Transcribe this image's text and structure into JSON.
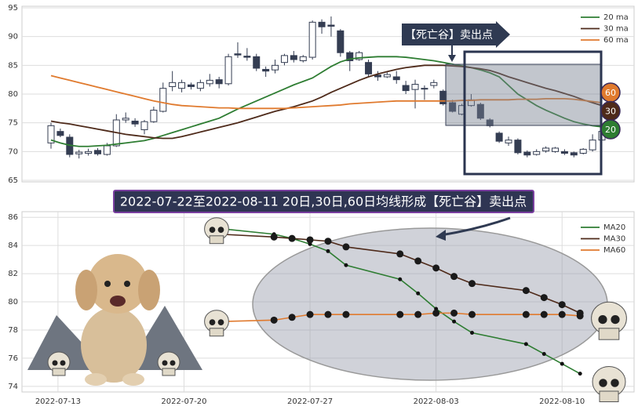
{
  "chart_data": [
    {
      "type": "candlestick",
      "ohlc": [
        [
          71.5,
          75,
          70.5,
          74.5
        ],
        [
          73.5,
          74,
          72.5,
          72.8
        ],
        [
          72.5,
          73,
          69,
          69.5
        ],
        [
          69.6,
          70.3,
          68.8,
          69.9
        ],
        [
          69.7,
          70.5,
          69.3,
          70
        ],
        [
          70.2,
          70.6,
          69.3,
          69.6
        ],
        [
          69.5,
          71.5,
          69.3,
          71
        ],
        [
          71,
          76.5,
          70.8,
          75.5
        ],
        [
          75.5,
          76.8,
          75,
          75.8
        ],
        [
          75.3,
          75.8,
          74.3,
          74.8
        ],
        [
          73.8,
          75.5,
          73,
          75.2
        ],
        [
          75.2,
          77.8,
          75,
          77.2
        ],
        [
          77,
          82,
          76.8,
          81
        ],
        [
          81.3,
          84,
          80.5,
          82
        ],
        [
          81,
          82.5,
          80.3,
          82
        ],
        [
          81.6,
          82,
          80.8,
          81.3
        ],
        [
          81,
          82.5,
          80.5,
          82
        ],
        [
          81.8,
          83.5,
          81.3,
          82.4
        ],
        [
          82.5,
          83,
          81,
          81.8
        ],
        [
          81.8,
          87,
          81.5,
          86.5
        ],
        [
          87,
          89,
          86.3,
          86.8
        ],
        [
          86.6,
          88,
          85.8,
          86.4
        ],
        [
          86.5,
          87,
          84,
          84.5
        ],
        [
          84.3,
          84.8,
          83,
          84
        ],
        [
          84.2,
          86,
          83.6,
          85
        ],
        [
          85.5,
          87,
          85,
          86.7
        ],
        [
          86.7,
          87.5,
          85.5,
          86
        ],
        [
          85.8,
          86.8,
          85.5,
          86.5
        ],
        [
          86.4,
          92.8,
          86,
          92.5
        ],
        [
          92.5,
          93,
          90.5,
          91.7
        ],
        [
          92,
          93.5,
          90,
          91.8
        ],
        [
          91,
          91.3,
          86.5,
          87.2
        ],
        [
          87.2,
          87.5,
          84,
          85.8
        ],
        [
          86,
          87.5,
          85.8,
          87.2
        ],
        [
          85.5,
          86,
          83,
          83.5
        ],
        [
          83.3,
          84,
          82.3,
          83
        ],
        [
          83,
          83.8,
          82.8,
          83.4
        ],
        [
          83,
          84,
          81.8,
          82.5
        ],
        [
          81.5,
          82.3,
          80,
          80.6
        ],
        [
          80.8,
          82.5,
          77.5,
          81.7
        ],
        [
          81,
          81.5,
          79,
          80.9
        ],
        [
          81.5,
          82.5,
          81,
          82
        ],
        [
          80.5,
          80.8,
          78,
          78.3
        ],
        [
          78.5,
          79,
          76.8,
          77
        ],
        [
          76.5,
          78.3,
          76.3,
          78
        ],
        [
          78,
          80,
          77.8,
          79
        ],
        [
          78.2,
          78.5,
          75.5,
          75.8
        ],
        [
          75.5,
          75.8,
          74.2,
          74.5
        ],
        [
          73.2,
          73.5,
          71.5,
          71.8
        ],
        [
          71.5,
          72.6,
          71,
          72
        ],
        [
          72,
          72.3,
          69.5,
          69.8
        ],
        [
          69.9,
          70.2,
          69,
          69.4
        ],
        [
          69.5,
          70.4,
          69.3,
          70
        ],
        [
          70.1,
          70.9,
          69.8,
          70.6
        ],
        [
          70,
          70.8,
          69.8,
          70.6
        ],
        [
          70,
          70.4,
          69.4,
          69.7
        ],
        [
          69.8,
          70,
          69,
          69.4
        ],
        [
          69.7,
          70.6,
          69.5,
          70.4
        ],
        [
          70.3,
          73,
          70,
          72
        ],
        [
          72,
          74,
          71.5,
          73.5
        ]
      ],
      "up_color": "#ffffff",
      "down_color": "#343d52",
      "series": [
        {
          "name": "20 ma",
          "color": "#2e7d32",
          "values": [
            72.0,
            71.5,
            71.1,
            70.9,
            70.9,
            71.0,
            71.1,
            71.3,
            71.5,
            71.7,
            71.9,
            72.3,
            72.8,
            73.3,
            73.8,
            74.3,
            74.8,
            75.3,
            75.8,
            76.6,
            77.4,
            78.1,
            78.8,
            79.5,
            80.2,
            80.9,
            81.6,
            82.2,
            82.8,
            83.8,
            84.8,
            85.6,
            86.1,
            86.3,
            86.4,
            86.5,
            86.5,
            86.5,
            86.4,
            86.2,
            86.0,
            85.8,
            85.5,
            85.2,
            84.9,
            84.6,
            84.2,
            83.7,
            83.0,
            81.5,
            80.0,
            79.0,
            78.0,
            77.2,
            76.5,
            75.8,
            75.2,
            74.8,
            74.5,
            74.3
          ]
        },
        {
          "name": "30 ma",
          "color": "#4e2a1a",
          "values": [
            75.3,
            75.0,
            74.8,
            74.5,
            74.2,
            73.9,
            73.6,
            73.3,
            73.0,
            72.8,
            72.6,
            72.4,
            72.3,
            72.3,
            72.6,
            73.0,
            73.4,
            73.8,
            74.2,
            74.6,
            75.0,
            75.5,
            76.0,
            76.5,
            77.0,
            77.4,
            77.8,
            78.3,
            78.8,
            79.5,
            80.3,
            81.0,
            81.7,
            82.4,
            83.0,
            83.5,
            83.9,
            84.3,
            84.6,
            84.8,
            85.0,
            85.0,
            85.0,
            84.9,
            84.8,
            84.6,
            84.4,
            84.1,
            83.6,
            83.0,
            82.5,
            82.0,
            81.5,
            81.0,
            80.6,
            80.1,
            79.6,
            79.0,
            78.5,
            78.0
          ]
        },
        {
          "name": "60 ma",
          "color": "#e07a2e",
          "values": [
            83.2,
            82.8,
            82.4,
            82.0,
            81.6,
            81.2,
            80.8,
            80.4,
            80.0,
            79.6,
            79.2,
            78.8,
            78.5,
            78.2,
            78.0,
            77.9,
            77.8,
            77.7,
            77.6,
            77.6,
            77.5,
            77.5,
            77.5,
            77.5,
            77.5,
            77.5,
            77.6,
            77.7,
            77.8,
            77.9,
            78.0,
            78.1,
            78.3,
            78.4,
            78.5,
            78.6,
            78.7,
            78.8,
            78.8,
            78.8,
            78.8,
            78.8,
            78.8,
            78.8,
            78.9,
            78.9,
            79.0,
            79.0,
            79.0,
            79.0,
            79.1,
            79.1,
            79.1,
            79.2,
            79.2,
            79.2,
            79.1,
            78.9,
            78.7,
            78.5
          ]
        }
      ],
      "badges": [
        "20",
        "30",
        "60"
      ],
      "annotation": "【死亡谷】卖出点",
      "ylim": [
        65,
        95
      ],
      "yticks": [
        65,
        70,
        75,
        80,
        85,
        90,
        95
      ],
      "grid": true,
      "legend": "upper right"
    },
    {
      "type": "line",
      "title": "2022-07-22至2022-08-11 20日,30日,60日均线形成【死亡谷】卖出点",
      "x": [
        "2022-07-22",
        "2022-07-25",
        "2022-07-26",
        "2022-07-27",
        "2022-07-28",
        "2022-07-29",
        "2022-08-01",
        "2022-08-02",
        "2022-08-03",
        "2022-08-04",
        "2022-08-05",
        "2022-08-08",
        "2022-08-09",
        "2022-08-10",
        "2022-08-11"
      ],
      "series": [
        {
          "name": "MA20",
          "color": "#2e7d32",
          "values": [
            85.2,
            84.8,
            84.5,
            84.1,
            83.6,
            82.6,
            81.6,
            80.6,
            79.5,
            78.6,
            77.8,
            77.0,
            76.3,
            75.6,
            74.9
          ]
        },
        {
          "name": "MA30",
          "color": "#4e2a1a",
          "values": [
            84.8,
            84.6,
            84.5,
            84.4,
            84.3,
            83.9,
            83.4,
            82.9,
            82.4,
            81.8,
            81.3,
            80.8,
            80.3,
            79.8,
            79.2
          ]
        },
        {
          "name": "MA60",
          "color": "#e07a2e",
          "values": [
            78.6,
            78.7,
            78.9,
            79.1,
            79.1,
            79.1,
            79.1,
            79.1,
            79.2,
            79.2,
            79.1,
            79.1,
            79.1,
            79.1,
            79.0
          ]
        }
      ],
      "xlim": [
        "2022-07-11",
        "2022-08-14"
      ],
      "xticks": [
        "2022-07-13",
        "2022-07-20",
        "2022-07-27",
        "2022-08-03",
        "2022-08-10"
      ],
      "ylim": [
        73.6,
        86.4
      ],
      "yticks": [
        74,
        76,
        78,
        80,
        82,
        84,
        86
      ],
      "grid": true,
      "legend": "upper right"
    }
  ]
}
